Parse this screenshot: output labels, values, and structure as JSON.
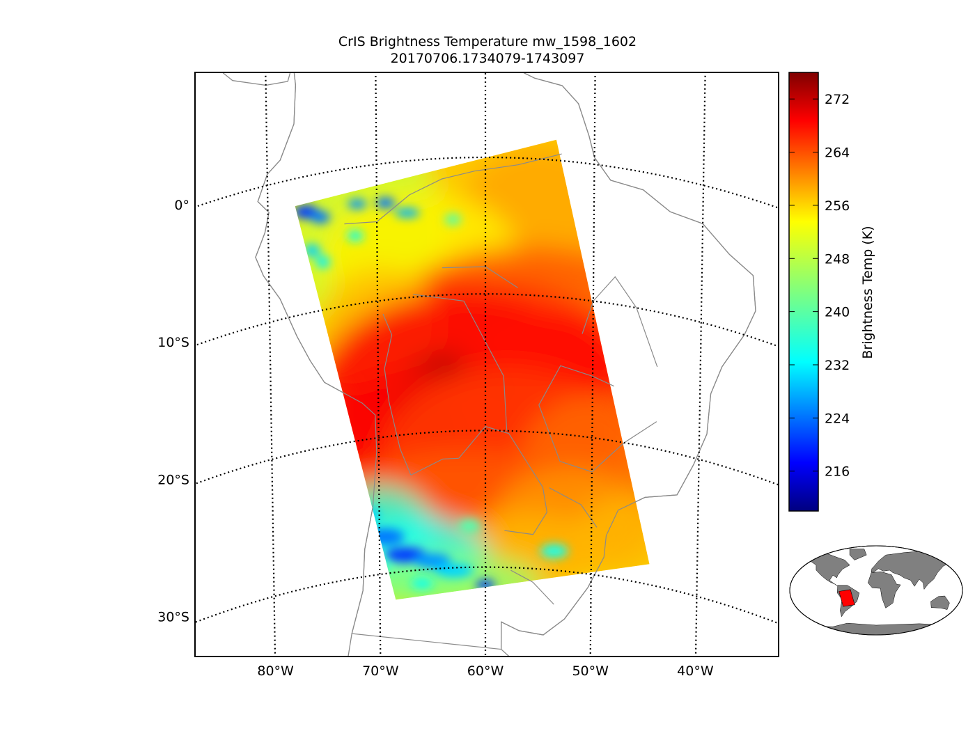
{
  "title": {
    "line1": "CrIS Brightness Temperature mw_1598_1602",
    "line2": "20170706.1734079-1743097"
  },
  "map": {
    "projection": "lambert conformal (curved graticule)",
    "lat_range": [
      -36,
      6
    ],
    "lon_range": [
      -86,
      -34
    ],
    "parallel_labels": [
      "0°",
      "10°S",
      "20°S",
      "30°S"
    ],
    "meridian_labels": [
      "80°W",
      "70°W",
      "60°W",
      "50°W",
      "40°W"
    ],
    "coastline_color": "#8a8a8a",
    "graticule_style": "dotted black"
  },
  "swath": {
    "corners_lonlat": [
      [
        -77.5,
        -2.0
      ],
      [
        -53.5,
        1.5
      ],
      [
        -44.5,
        -28.5
      ],
      [
        -68.5,
        -32.0
      ]
    ],
    "colormap": "jet",
    "features": [
      {
        "desc": "cold cloud tops north-west",
        "value": 225
      },
      {
        "desc": "warm core central",
        "value": 274
      },
      {
        "desc": "cold band south-west",
        "value": 224
      }
    ]
  },
  "colorbar": {
    "label": "Brightness Temp (K)",
    "ticks": [
      "216",
      "224",
      "232",
      "240",
      "248",
      "256",
      "264",
      "272"
    ],
    "vmin": 210,
    "vmax": 276,
    "colormap": "jet"
  },
  "inset": {
    "land_color": "#808080",
    "highlight_color": "#ff0000",
    "region": "South America swath footprint"
  }
}
